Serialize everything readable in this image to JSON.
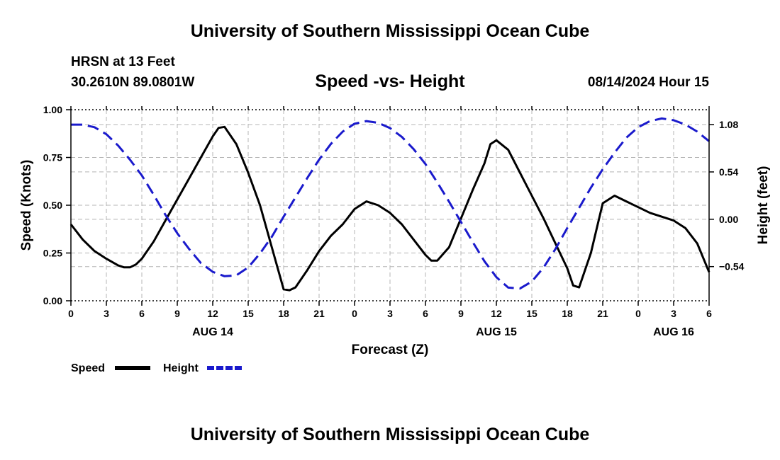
{
  "header": {
    "title": "University of Southern Mississippi Ocean Cube",
    "station": "HRSN at 13 Feet",
    "coords": "30.2610N  89.0801W",
    "date_hour": "08/14/2024 Hour 15",
    "footer_title": "University of Southern Mississippi Ocean Cube"
  },
  "chart_data": {
    "type": "line",
    "title": "Speed -vs- Height",
    "xlabel": "Forecast (Z)",
    "ylabel": "Speed (Knots)",
    "y2label": "Height (feet)",
    "xlim": [
      0,
      54
    ],
    "ylim": [
      0,
      1.0
    ],
    "y2lim": [
      -0.93,
      1.25
    ],
    "x_ticks": [
      0,
      3,
      6,
      9,
      12,
      15,
      18,
      21,
      24,
      27,
      30,
      33,
      36,
      39,
      42,
      45,
      48,
      51,
      54
    ],
    "x_tick_labels": [
      "0",
      "3",
      "6",
      "9",
      "12",
      "15",
      "18",
      "21",
      "0",
      "3",
      "6",
      "9",
      "12",
      "15",
      "18",
      "21",
      "0",
      "3",
      "6"
    ],
    "date_labels": [
      {
        "x": 12,
        "text": "AUG 14"
      },
      {
        "x": 36,
        "text": "AUG 15"
      },
      {
        "x": 51,
        "text": "AUG 16"
      }
    ],
    "y_ticks": [
      0,
      0.25,
      0.5,
      0.75,
      1.0
    ],
    "y_tick_labels": [
      "0.00",
      "0.25",
      "0.50",
      "0.75",
      "1.00"
    ],
    "y2_ticks": [
      1.08,
      0.54,
      0.0,
      -0.54
    ],
    "y2_tick_labels": [
      "1.08",
      "0.54",
      "0.00",
      "−0.54"
    ],
    "grid": true,
    "legend": [
      {
        "name": "Speed",
        "color": "#000000",
        "dash": false
      },
      {
        "name": "Height",
        "color": "#1a1acc",
        "dash": true
      }
    ],
    "series": [
      {
        "name": "Speed",
        "axis": "left",
        "color": "#000000",
        "x": [
          0,
          1,
          2,
          3,
          4,
          4.5,
          5,
          5.5,
          6,
          7,
          8,
          9,
          10,
          11,
          12,
          12.5,
          13,
          14,
          15,
          16,
          17,
          18,
          18.5,
          19,
          20,
          21,
          22,
          23,
          24,
          25,
          26,
          27,
          28,
          29,
          30,
          30.5,
          31,
          32,
          33,
          34,
          35,
          35.5,
          36,
          37,
          38,
          39,
          40,
          41,
          42,
          42.5,
          43,
          44,
          45,
          46,
          47,
          48,
          49,
          50,
          51,
          52,
          53,
          54
        ],
        "values": [
          0.4,
          0.32,
          0.26,
          0.22,
          0.185,
          0.175,
          0.175,
          0.19,
          0.22,
          0.31,
          0.42,
          0.53,
          0.64,
          0.75,
          0.86,
          0.905,
          0.91,
          0.82,
          0.67,
          0.5,
          0.28,
          0.06,
          0.055,
          0.07,
          0.16,
          0.26,
          0.34,
          0.4,
          0.48,
          0.52,
          0.5,
          0.46,
          0.4,
          0.32,
          0.24,
          0.21,
          0.21,
          0.28,
          0.43,
          0.58,
          0.72,
          0.82,
          0.84,
          0.79,
          0.67,
          0.55,
          0.43,
          0.3,
          0.17,
          0.08,
          0.07,
          0.25,
          0.51,
          0.55,
          0.52,
          0.49,
          0.46,
          0.44,
          0.42,
          0.38,
          0.3,
          0.15
        ]
      },
      {
        "name": "Height",
        "axis": "right",
        "color": "#1a1acc",
        "x": [
          0,
          1,
          2,
          3,
          4,
          5,
          6,
          7,
          8,
          9,
          10,
          11,
          12,
          13,
          14,
          15,
          16,
          17,
          18,
          19,
          20,
          21,
          22,
          23,
          24,
          25,
          26,
          27,
          28,
          29,
          30,
          31,
          32,
          33,
          34,
          35,
          36,
          37,
          38,
          39,
          40,
          41,
          42,
          43,
          44,
          45,
          46,
          47,
          48,
          49,
          50,
          51,
          52,
          53,
          54
        ],
        "values": [
          1.08,
          1.08,
          1.05,
          0.97,
          0.84,
          0.68,
          0.5,
          0.28,
          0.05,
          -0.16,
          -0.34,
          -0.5,
          -0.6,
          -0.65,
          -0.64,
          -0.55,
          -0.39,
          -0.2,
          0.03,
          0.25,
          0.47,
          0.68,
          0.86,
          1.0,
          1.09,
          1.12,
          1.1,
          1.04,
          0.94,
          0.8,
          0.63,
          0.42,
          0.2,
          -0.03,
          -0.26,
          -0.48,
          -0.66,
          -0.78,
          -0.79,
          -0.71,
          -0.55,
          -0.34,
          -0.1,
          0.13,
          0.36,
          0.57,
          0.76,
          0.93,
          1.05,
          1.12,
          1.15,
          1.13,
          1.08,
          1.0,
          0.89
        ]
      }
    ]
  }
}
